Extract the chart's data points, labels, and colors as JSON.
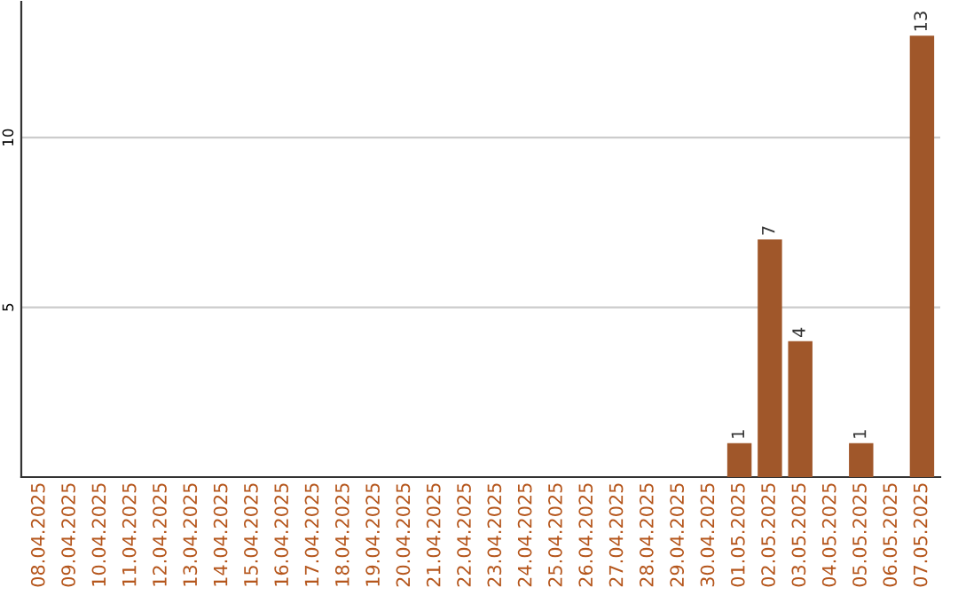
{
  "chart_data": {
    "type": "bar",
    "categories": [
      "08.04.2025",
      "09.04.2025",
      "10.04.2025",
      "11.04.2025",
      "12.04.2025",
      "13.04.2025",
      "14.04.2025",
      "15.04.2025",
      "16.04.2025",
      "17.04.2025",
      "18.04.2025",
      "19.04.2025",
      "20.04.2025",
      "21.04.2025",
      "22.04.2025",
      "23.04.2025",
      "24.04.2025",
      "25.04.2025",
      "26.04.2025",
      "27.04.2025",
      "28.04.2025",
      "29.04.2025",
      "30.04.2025",
      "01.05.2025",
      "02.05.2025",
      "03.05.2025",
      "04.05.2025",
      "05.05.2025",
      "06.05.2025",
      "07.05.2025"
    ],
    "values": [
      0,
      0,
      0,
      0,
      0,
      0,
      0,
      0,
      0,
      0,
      0,
      0,
      0,
      0,
      0,
      0,
      0,
      0,
      0,
      0,
      0,
      0,
      0,
      1,
      7,
      4,
      0,
      1,
      0,
      13
    ],
    "value_labels": [
      null,
      null,
      null,
      null,
      null,
      null,
      null,
      null,
      null,
      null,
      null,
      null,
      null,
      null,
      null,
      null,
      null,
      null,
      null,
      null,
      null,
      null,
      null,
      "1",
      "7",
      "4",
      null,
      "1",
      null,
      "13"
    ],
    "color": "#a0572a",
    "ylim": [
      0,
      14
    ],
    "yticks": [
      5,
      10
    ],
    "grid": "y"
  }
}
